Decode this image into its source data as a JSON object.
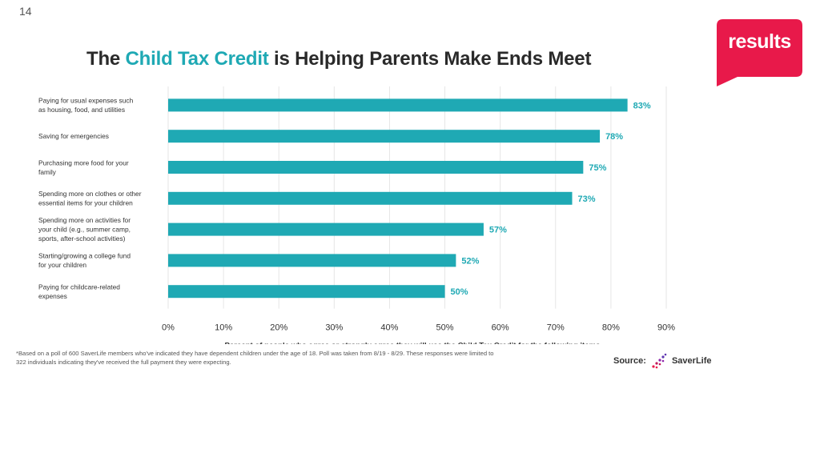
{
  "slide": {
    "number": "14"
  },
  "logo": {
    "text": "results",
    "color": "#e8194a"
  },
  "title": {
    "before": "The ",
    "accent": "Child Tax Credit",
    "after": " is Helping Parents Make Ends Meet",
    "accent_color": "#1fa9b4"
  },
  "chart_data": {
    "type": "bar",
    "orientation": "horizontal",
    "categories": [
      [
        "Paying for usual expenses such",
        "as housing, food, and utilities"
      ],
      [
        "Saving for emergencies"
      ],
      [
        "Purchasing more food for your",
        "family"
      ],
      [
        "Spending more on clothes or other",
        "essential items for your children"
      ],
      [
        "Spending more on activities for",
        "your child (e.g., summer camp,",
        "sports, after-school activities)"
      ],
      [
        "Starting/growing a college fund",
        "for your children"
      ],
      [
        "Paying for childcare-related",
        "expenses"
      ]
    ],
    "values": [
      83,
      78,
      75,
      73,
      57,
      52,
      50
    ],
    "value_labels": [
      "83%",
      "78%",
      "75%",
      "73%",
      "57%",
      "52%",
      "50%"
    ],
    "xlim": [
      0,
      90
    ],
    "xticks": [
      0,
      10,
      20,
      30,
      40,
      50,
      60,
      70,
      80,
      90
    ],
    "xtick_labels": [
      "0%",
      "10%",
      "20%",
      "30%",
      "40%",
      "50%",
      "60%",
      "70%",
      "80%",
      "90%"
    ],
    "xlabel": "Percent of people who agree or strongly agree they will use the Child Tax Credit for the following items",
    "grid": true,
    "bar_color": "#1fa9b4",
    "label_color": "#1fa9b4"
  },
  "footnote": "*Based on a poll of 600 SaverLife members who've indicated they have dependent children under the age of 18. Poll was taken from 8/19 - 8/29. These responses were limited to 322 individuals indicating they've received the full payment they were expecting.",
  "source": {
    "label": "Source:",
    "brand": "SaverLife"
  }
}
